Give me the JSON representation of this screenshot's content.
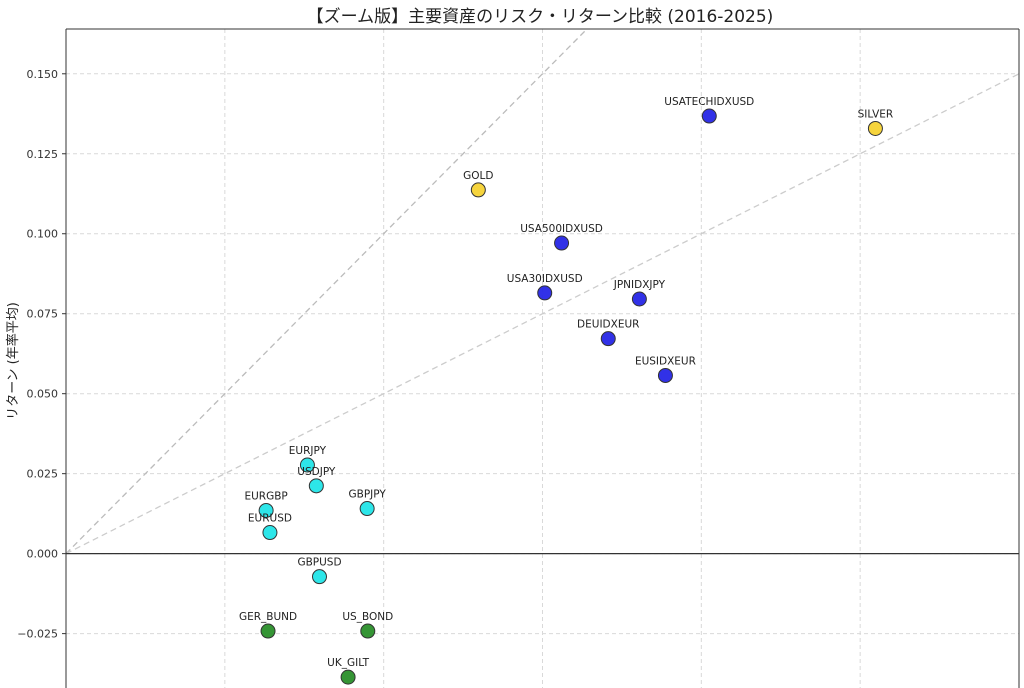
{
  "chart_data": {
    "type": "scatter",
    "title": "【ズーム版】主要資産のリスク・リターン比較 (2016-2025)",
    "xlabel": "",
    "ylabel": "リターン (年率平均)",
    "xlim": [
      0.0,
      0.3
    ],
    "ylim": [
      -0.042,
      0.164
    ],
    "yticks": [
      -0.025,
      0.0,
      0.025,
      0.05,
      0.075,
      0.1,
      0.125,
      0.15
    ],
    "ytick_labels": [
      "−0.025",
      "0.000",
      "0.025",
      "0.050",
      "0.075",
      "0.100",
      "0.125",
      "0.150"
    ],
    "xgrid": [
      0.05,
      0.1,
      0.15,
      0.2,
      0.25,
      0.3
    ],
    "grid": true,
    "reference_lines": [
      {
        "slope": 1.0,
        "style": "dashed",
        "color": "#bbbbbb"
      },
      {
        "slope": 0.5,
        "style": "dashed",
        "color": "#cccccc"
      }
    ],
    "zero_line": true,
    "colors": {
      "fx": "#22e5e8",
      "index": "#2626e6",
      "metal": "#f5d233",
      "bond": "#2a8f2a"
    },
    "points": [
      {
        "label": "USATECHIDXUSD",
        "x": 0.2025,
        "y": 0.1368,
        "group": "index"
      },
      {
        "label": "SILVER",
        "x": 0.2548,
        "y": 0.1329,
        "group": "metal"
      },
      {
        "label": "GOLD",
        "x": 0.1298,
        "y": 0.1137,
        "group": "metal"
      },
      {
        "label": "USA500IDXUSD",
        "x": 0.156,
        "y": 0.0971,
        "group": "index"
      },
      {
        "label": "USA30IDXUSD",
        "x": 0.1507,
        "y": 0.0815,
        "group": "index"
      },
      {
        "label": "JPNIDXJPY",
        "x": 0.1805,
        "y": 0.0796,
        "group": "index"
      },
      {
        "label": "DEUIDXEUR",
        "x": 0.1707,
        "y": 0.0672,
        "group": "index"
      },
      {
        "label": "EUSIDXEUR",
        "x": 0.1887,
        "y": 0.0557,
        "group": "index"
      },
      {
        "label": "EURJPY",
        "x": 0.076,
        "y": 0.0277,
        "group": "fx"
      },
      {
        "label": "USDJPY",
        "x": 0.0788,
        "y": 0.0212,
        "group": "fx"
      },
      {
        "label": "GBPJPY",
        "x": 0.0948,
        "y": 0.0141,
        "group": "fx"
      },
      {
        "label": "EURGBP",
        "x": 0.063,
        "y": 0.0135,
        "group": "fx"
      },
      {
        "label": "EURUSD",
        "x": 0.0642,
        "y": 0.0066,
        "group": "fx"
      },
      {
        "label": "GBPUSD",
        "x": 0.0798,
        "y": -0.0072,
        "group": "fx"
      },
      {
        "label": "GER_BUND",
        "x": 0.0636,
        "y": -0.0242,
        "group": "bond"
      },
      {
        "label": "US_BOND",
        "x": 0.095,
        "y": -0.0242,
        "group": "bond"
      },
      {
        "label": "UK_GILT",
        "x": 0.0888,
        "y": -0.0386,
        "group": "bond"
      }
    ]
  }
}
